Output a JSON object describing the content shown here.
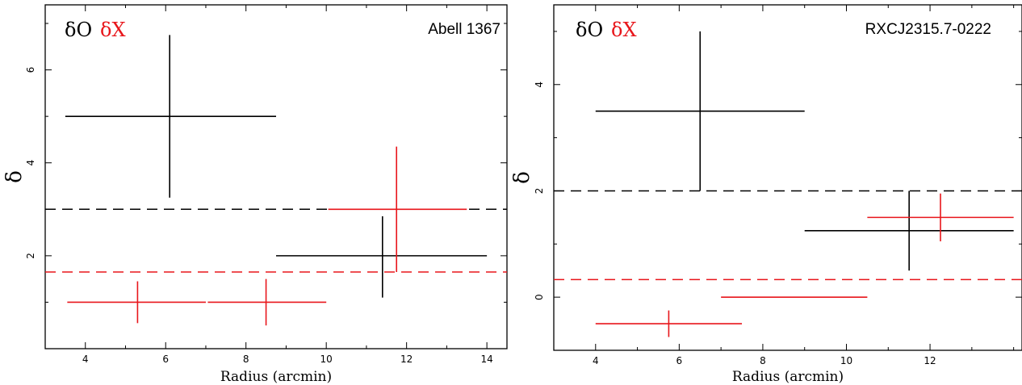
{
  "chart_data": [
    {
      "type": "scatter",
      "title": "Abell 1367",
      "xlabel": "Radius (arcmin)",
      "ylabel": "δ",
      "legend": [
        {
          "label": "δO",
          "color": "#000000"
        },
        {
          "label": "δX",
          "color": "#e8161b"
        }
      ],
      "xlim": [
        3,
        14.5
      ],
      "ylim": [
        0,
        7.4
      ],
      "xticks": [
        4,
        6,
        8,
        10,
        12,
        14
      ],
      "yticks": [
        2,
        4,
        6
      ],
      "reference_lines": [
        {
          "series": "δO",
          "y": 3.0,
          "style": "dashed",
          "color": "#000000"
        },
        {
          "series": "δX",
          "y": 1.65,
          "style": "dashed",
          "color": "#e8161b"
        }
      ],
      "series": [
        {
          "name": "δO",
          "color": "#000000",
          "points": [
            {
              "x": 6.1,
              "y": 5.0,
              "xmin": 3.5,
              "xmax": 8.75,
              "ymin": 3.25,
              "ymax": 6.75
            },
            {
              "x": 11.4,
              "y": 2.0,
              "xmin": 8.75,
              "xmax": 14.0,
              "ymin": 1.1,
              "ymax": 2.85
            }
          ]
        },
        {
          "name": "δX",
          "color": "#e8161b",
          "points": [
            {
              "x": 5.3,
              "y": 1.0,
              "xmin": 3.55,
              "xmax": 7.0,
              "ymin": 0.55,
              "ymax": 1.45
            },
            {
              "x": 8.5,
              "y": 1.0,
              "xmin": 7.05,
              "xmax": 10.0,
              "ymin": 0.5,
              "ymax": 1.5
            },
            {
              "x": 11.75,
              "y": 3.0,
              "xmin": 10.05,
              "xmax": 13.5,
              "ymin": 1.65,
              "ymax": 4.35
            }
          ]
        }
      ]
    },
    {
      "type": "scatter",
      "title": "RXCJ2315.7-0222",
      "xlabel": "Radius (arcmin)",
      "ylabel": "δ",
      "legend": [
        {
          "label": "δO",
          "color": "#000000"
        },
        {
          "label": "δX",
          "color": "#e8161b"
        }
      ],
      "xlim": [
        3,
        14.2
      ],
      "ylim": [
        -1.0,
        5.5
      ],
      "xticks": [
        4,
        6,
        8,
        10,
        12
      ],
      "yticks": [
        0,
        2,
        4
      ],
      "reference_lines": [
        {
          "series": "δO",
          "y": 2.0,
          "style": "dashed",
          "color": "#000000"
        },
        {
          "series": "δX",
          "y": 0.33,
          "style": "dashed",
          "color": "#e8161b"
        }
      ],
      "series": [
        {
          "name": "δO",
          "color": "#000000",
          "points": [
            {
              "x": 6.5,
              "y": 3.5,
              "xmin": 4.0,
              "xmax": 9.0,
              "ymin": 2.0,
              "ymax": 5.0
            },
            {
              "x": 11.5,
              "y": 1.25,
              "xmin": 9.0,
              "xmax": 14.0,
              "ymin": 0.5,
              "ymax": 2.0
            }
          ]
        },
        {
          "name": "δX",
          "color": "#e8161b",
          "points": [
            {
              "x": 5.75,
              "y": -0.5,
              "xmin": 4.0,
              "xmax": 7.5,
              "ymin": -0.75,
              "ymax": -0.25
            },
            {
              "x": 8.75,
              "y": 0.0,
              "xmin": 7.0,
              "xmax": 10.5,
              "ymin": 0.0,
              "ymax": 0.0
            },
            {
              "x": 12.25,
              "y": 1.5,
              "xmin": 10.5,
              "xmax": 14.0,
              "ymin": 1.05,
              "ymax": 1.95
            }
          ]
        }
      ]
    }
  ]
}
